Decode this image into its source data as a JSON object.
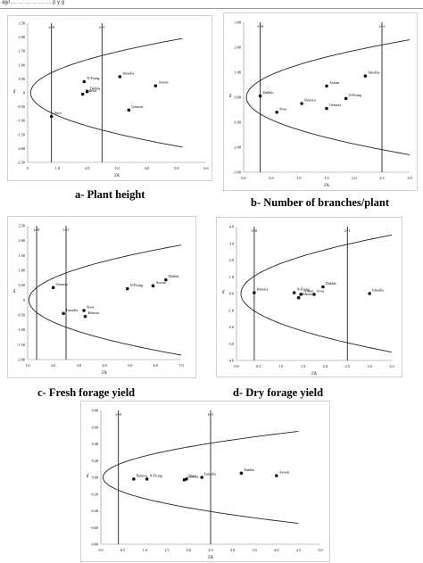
{
  "header": {
    "text": "ajy/,…        … … …        … …  p y g"
  },
  "panels": [
    {
      "id": "a",
      "caption": "a- Plant height",
      "chart_data": {
        "type": "scatter",
        "ylabel": "δ̂",
        "xlabel": "λ̂A",
        "xlim": [
          0,
          6
        ],
        "ylim": [
          -2.5,
          2.5
        ],
        "xticks": [
          "0",
          "1.0",
          "2.0",
          "3.0",
          "4.0",
          "5.0",
          "6.0"
        ],
        "yticks": [
          "2.50",
          "2.00",
          "1.50",
          "1.00",
          "0.50",
          "0",
          "-0.50",
          "-1.00",
          "-1.50",
          "-2.00",
          "-2.50"
        ],
        "vlines": [
          {
            "label": "λ=0",
            "x": 0.8
          },
          {
            "label": "λ=1",
            "x": 2.5
          }
        ],
        "curve": {
          "vertex_x": 0.1,
          "end_x": 5.2,
          "end_y": 1.95
        },
        "points": [
          {
            "label": "Ismailia",
            "x": 3.1,
            "y": 0.58
          },
          {
            "label": "Aswan",
            "x": 4.3,
            "y": 0.25
          },
          {
            "label": "N-Fising",
            "x": 1.9,
            "y": 0.4
          },
          {
            "label": "Dakhla",
            "x": 2.0,
            "y": 0.04
          },
          {
            "label": "Beheira",
            "x": 1.85,
            "y": -0.05
          },
          {
            "label": "Siwa",
            "x": 0.8,
            "y": -0.85
          },
          {
            "label": "Gemeza",
            "x": 3.4,
            "y": -0.62
          }
        ]
      }
    },
    {
      "id": "b",
      "caption": "b- Number of branches/plant",
      "chart_data": {
        "type": "scatter",
        "ylabel": "δ̂",
        "xlabel": "λ̂A",
        "xlim": [
          0,
          3
        ],
        "ylim": [
          -3,
          3
        ],
        "xticks": [
          "0.0",
          "0.5",
          "1.0",
          "1.5",
          "2.0",
          "2.5",
          "3.0"
        ],
        "yticks": [
          "3.00",
          "2.00",
          "1.00",
          "0.00",
          "-1.00",
          "-2.00",
          "-3.00"
        ],
        "vlines": [
          {
            "label": "λ=0",
            "x": 0.3
          },
          {
            "label": "λ=1",
            "x": 2.5
          }
        ],
        "curve": {
          "vertex_x": 0.05,
          "end_x": 3.0,
          "end_y": 2.3
        },
        "points": [
          {
            "label": "Ismailia",
            "x": 2.2,
            "y": 0.85
          },
          {
            "label": "Aswan",
            "x": 1.5,
            "y": 0.45
          },
          {
            "label": "N-Fising",
            "x": 1.85,
            "y": -0.05
          },
          {
            "label": "Dakhla",
            "x": 0.3,
            "y": 0.05
          },
          {
            "label": "Beheira",
            "x": 1.05,
            "y": -0.25
          },
          {
            "label": "Siwa",
            "x": 0.6,
            "y": -0.6
          },
          {
            "label": "Gemeza",
            "x": 1.5,
            "y": -0.45
          }
        ]
      }
    },
    {
      "id": "c",
      "caption": "c- Fresh forage yield",
      "chart_data": {
        "type": "scatter",
        "ylabel": "δ̂",
        "xlabel": "λ̂A",
        "xlim": [
          1,
          7
        ],
        "ylim": [
          -2,
          2.5
        ],
        "xticks": [
          "1.0",
          "2.0",
          "3.0",
          "4.0",
          "5.0",
          "6.0",
          "7.0"
        ],
        "yticks": [
          "2.50",
          "2.00",
          "1.50",
          "1.00",
          "0.50",
          "0",
          "-0.50",
          "-1.00",
          "-1.50",
          "-2.00"
        ],
        "vlines": [
          {
            "label": "λ=0",
            "x": 1.35
          },
          {
            "label": "λ=1",
            "x": 2.5
          }
        ],
        "curve": {
          "vertex_x": 1.05,
          "end_x": 7.0,
          "end_y": 1.85
        },
        "points": [
          {
            "label": "Gemeza",
            "x": 2.0,
            "y": 0.42
          },
          {
            "label": "Ismailia",
            "x": 2.4,
            "y": -0.45
          },
          {
            "label": "Beheira",
            "x": 3.25,
            "y": -0.55
          },
          {
            "label": "Siwa",
            "x": 3.2,
            "y": -0.35
          },
          {
            "label": "N-Fising",
            "x": 4.9,
            "y": 0.38
          },
          {
            "label": "Aswan",
            "x": 5.9,
            "y": 0.48
          },
          {
            "label": "Dakhla",
            "x": 6.4,
            "y": 0.68
          }
        ]
      }
    },
    {
      "id": "d",
      "caption": "d- Dry forage yield",
      "chart_data": {
        "type": "scatter",
        "ylabel": "δ̂",
        "xlabel": "λ̂A",
        "xlim": [
          0,
          3.5
        ],
        "ylim": [
          -4,
          4
        ],
        "xticks": [
          "0.0",
          "0.5",
          "1.0",
          "1.5",
          "2.0",
          "2.5",
          "3.0",
          "3.5"
        ],
        "yticks": [
          "4.0",
          "3.0",
          "2.0",
          "1.0",
          "0.0",
          "-1.0",
          "-2.0",
          "-3.0",
          "-4.0"
        ],
        "vlines": [
          {
            "label": "λ=0",
            "x": 0.4
          },
          {
            "label": "λ=1",
            "x": 2.5
          }
        ],
        "curve": {
          "vertex_x": 0.1,
          "end_x": 3.5,
          "end_y": 3.5
        },
        "points": [
          {
            "label": "Beheira",
            "x": 0.4,
            "y": 0.05
          },
          {
            "label": "N-Fising",
            "x": 1.3,
            "y": 0.05
          },
          {
            "label": "Beheira",
            "x": 1.4,
            "y": -0.25
          },
          {
            "label": "Aswan",
            "x": 1.45,
            "y": -0.05
          },
          {
            "label": "Siwa",
            "x": 1.75,
            "y": -0.05
          },
          {
            "label": "Dakhla",
            "x": 1.95,
            "y": 0.4
          },
          {
            "label": "Ismailia",
            "x": 3.0,
            "y": 0.0
          }
        ]
      }
    },
    {
      "id": "e",
      "caption": "",
      "chart_data": {
        "type": "scatter",
        "ylabel": "δ̂",
        "xlabel": "λ̂A",
        "xlim": [
          0,
          5
        ],
        "ylim": [
          -0.8,
          0.8
        ],
        "xticks": [
          "0.0",
          "0.5",
          "1.0",
          "1.5",
          "2.0",
          "2.5",
          "3.0",
          "3.5",
          "4.0",
          "4.5",
          "5.0"
        ],
        "yticks": [
          "0.80",
          "0.60",
          "0.40",
          "0.20",
          "0.00",
          "-0.20",
          "-0.40",
          "-0.60",
          "-0.80"
        ],
        "vlines": [
          {
            "label": "λ=0",
            "x": 0.4
          },
          {
            "label": "λ=1",
            "x": 2.5
          }
        ],
        "curve": {
          "vertex_x": 0.05,
          "end_x": 4.5,
          "end_y": 0.55
        },
        "points": [
          {
            "label": "Beheira",
            "x": 0.75,
            "y": -0.02
          },
          {
            "label": "N-Fising",
            "x": 1.05,
            "y": -0.02
          },
          {
            "label": "Gemeza",
            "x": 1.9,
            "y": -0.03
          },
          {
            "label": "Siwa",
            "x": 1.95,
            "y": -0.02
          },
          {
            "label": "Ismailia",
            "x": 2.3,
            "y": 0.0
          },
          {
            "label": "Dakhla",
            "x": 3.2,
            "y": 0.05
          },
          {
            "label": "Aswan",
            "x": 4.0,
            "y": 0.02
          }
        ]
      }
    }
  ]
}
